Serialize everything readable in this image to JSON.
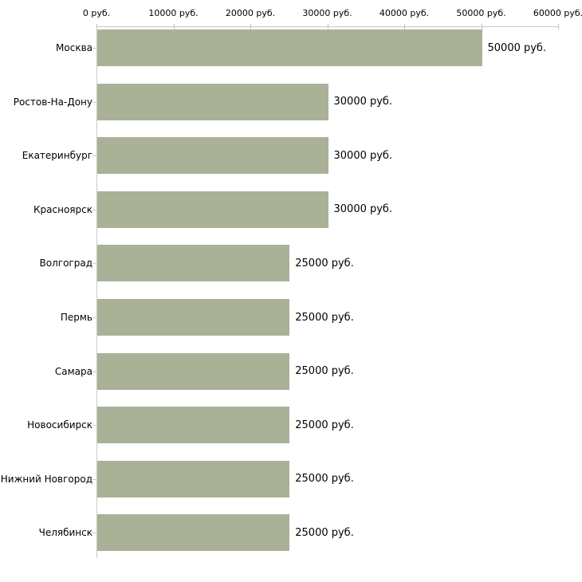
{
  "chart_data": {
    "type": "bar",
    "orientation": "horizontal",
    "title": "",
    "xlabel": "",
    "ylabel": "",
    "grid": false,
    "legend": "none",
    "categories": [
      "Москва",
      "Ростов-На-Дону",
      "Екатеринбург",
      "Красноярск",
      "Волгоград",
      "Пермь",
      "Самара",
      "Новосибирск",
      "Нижний Новгород",
      "Челябинск"
    ],
    "values": [
      50000,
      30000,
      30000,
      30000,
      25000,
      25000,
      25000,
      25000,
      25000,
      25000
    ],
    "value_labels": [
      "50000 руб.",
      "30000 руб.",
      "30000 руб.",
      "30000 руб.",
      "25000 руб.",
      "25000 руб.",
      "25000 руб.",
      "25000 руб.",
      "25000 руб.",
      "25000 руб."
    ],
    "unit": "руб.",
    "x_axis": {
      "position": "top",
      "min": 0,
      "max": 60000,
      "ticks": [
        0,
        10000,
        20000,
        30000,
        40000,
        50000,
        60000
      ],
      "tick_labels": [
        "0 руб.",
        "10000 руб.",
        "20000 руб.",
        "30000 руб.",
        "40000 руб.",
        "50000 руб.",
        "60000 руб."
      ]
    },
    "colors": {
      "bar": "#a9b197",
      "axis_line": "#c9c9c9",
      "x_tick": "#c4c8a4",
      "row_tick": "#c9c9c9",
      "text": "#000000",
      "background": "#ffffff"
    }
  }
}
